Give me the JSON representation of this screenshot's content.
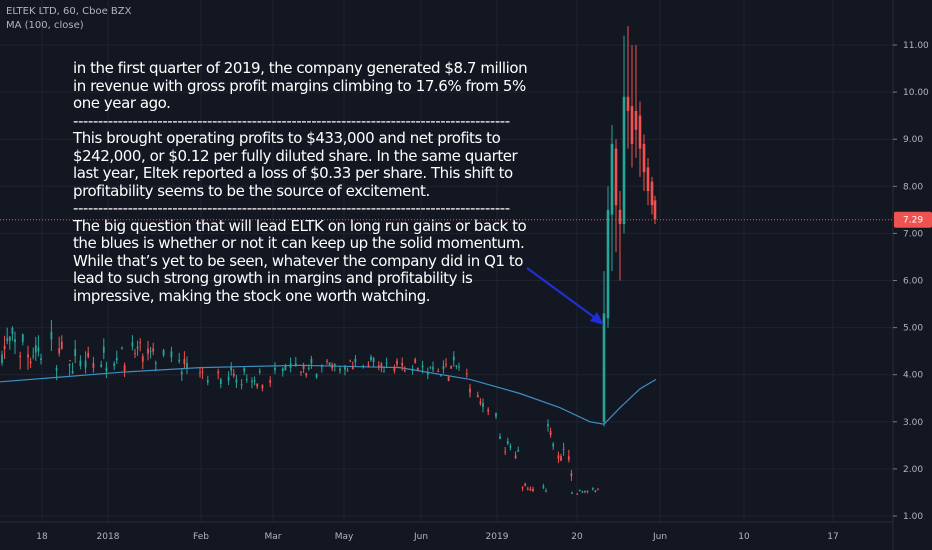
{
  "header": {
    "symbol_line": "ELTEK LTD, 60, Cboe BZX",
    "indicator_line": "MA (100, close)"
  },
  "note": {
    "paragraphs": [
      "in the first quarter of 2019, the company generated $8.7 million in revenue with gross profit margins climbing to 17.6% from 5% one year ago.",
      "This brought operating profits to $433,000 and net profits to $242,000, or $0.12 per fully diluted share. In the same quarter last year, Eltek reported a loss of $0.33 per share. This shift to profitability seems to be the source of excitement.",
      "The big question that will lead ELTK on long run gains or back to the blues is whether or not it can keep up the solid momentum. While that’s yet to be seen, whatever the company did in Q1 to lead to such strong growth in margins and profitability is impressive, making the stock one worth watching."
    ],
    "separator": "----------------------------------------------------------------------------------------"
  },
  "colors": {
    "background": "#131722",
    "grid": "#1f2330",
    "up": "#26a69a",
    "down": "#ef5350",
    "ma": "#3b8fc4",
    "arrow": "#1f2fd6",
    "price_tag": "#ef5350"
  },
  "chart_data": {
    "type": "candlestick",
    "title": "ELTEK LTD, 60, Cboe BZX",
    "indicator": "MA (100, close)",
    "y_axis": {
      "ticks": [
        "1.00",
        "2.00",
        "3.00",
        "4.00",
        "5.00",
        "6.00",
        "7.00",
        "8.00",
        "9.00",
        "10.00",
        "11.00"
      ],
      "ylim": [
        0.7,
        11.4
      ]
    },
    "x_axis": {
      "ticks": [
        "18",
        "2018",
        "Feb",
        "Mar",
        "May",
        "Jun",
        "2019",
        "20",
        "Jun",
        "10",
        "17"
      ]
    },
    "last_price": "7.29",
    "clusters": [
      {
        "x0": 2,
        "x1": 70,
        "center": 4.5,
        "spread": 0.7,
        "trend": -0.2
      },
      {
        "x0": 70,
        "x1": 135,
        "center": 4.3,
        "spread": 0.5,
        "trend": 0.2
      },
      {
        "x0": 135,
        "x1": 200,
        "center": 4.3,
        "spread": 0.45,
        "trend": -0.4
      },
      {
        "x0": 200,
        "x1": 275,
        "center": 3.95,
        "spread": 0.35,
        "trend": -0.1
      },
      {
        "x0": 275,
        "x1": 345,
        "center": 4.1,
        "spread": 0.35,
        "trend": 0.1
      },
      {
        "x0": 345,
        "x1": 420,
        "center": 4.2,
        "spread": 0.3,
        "trend": 0.0
      },
      {
        "x0": 420,
        "x1": 468,
        "center": 4.1,
        "spread": 0.35,
        "trend": 0.2
      },
      {
        "x0": 470,
        "x1": 500,
        "center": 3.3,
        "spread": 0.3,
        "trend": -0.6
      },
      {
        "x0": 500,
        "x1": 520,
        "center": 2.4,
        "spread": 0.25,
        "trend": -0.3
      },
      {
        "x0": 520,
        "x1": 548,
        "center": 1.6,
        "spread": 0.15,
        "trend": -0.2
      },
      {
        "x0": 548,
        "x1": 572,
        "center": 2.4,
        "spread": 0.35,
        "trend": -0.7
      },
      {
        "x0": 572,
        "x1": 600,
        "center": 1.55,
        "spread": 0.1,
        "trend": 0.1
      }
    ],
    "rally": [
      {
        "x": 604,
        "o": 3.0,
        "c": 5.3,
        "h": 6.2,
        "l": 2.9
      },
      {
        "x": 608,
        "o": 5.2,
        "c": 7.5,
        "h": 8.0,
        "l": 5.0
      },
      {
        "x": 612,
        "o": 7.4,
        "c": 8.9,
        "h": 9.3,
        "l": 6.2
      },
      {
        "x": 616,
        "o": 8.8,
        "c": 7.6,
        "h": 9.0,
        "l": 6.6
      },
      {
        "x": 620,
        "o": 7.5,
        "c": 7.2,
        "h": 7.9,
        "l": 6.0
      },
      {
        "x": 624,
        "o": 7.2,
        "c": 9.9,
        "h": 11.2,
        "l": 7.0
      },
      {
        "x": 628,
        "o": 9.9,
        "c": 9.6,
        "h": 11.4,
        "l": 8.8
      },
      {
        "x": 632,
        "o": 9.7,
        "c": 8.9,
        "h": 11.0,
        "l": 8.4
      },
      {
        "x": 636,
        "o": 9.6,
        "c": 9.2,
        "h": 11.0,
        "l": 8.6
      },
      {
        "x": 640,
        "o": 9.5,
        "c": 8.8,
        "h": 9.8,
        "l": 8.2
      },
      {
        "x": 644,
        "o": 8.9,
        "c": 8.3,
        "h": 9.1,
        "l": 7.9
      },
      {
        "x": 648,
        "o": 8.4,
        "c": 7.9,
        "h": 8.6,
        "l": 7.6
      },
      {
        "x": 652,
        "o": 8.1,
        "c": 7.6,
        "h": 8.2,
        "l": 7.4
      },
      {
        "x": 655,
        "o": 7.7,
        "c": 7.3,
        "h": 7.8,
        "l": 7.2
      }
    ],
    "ma_series": [
      {
        "x": 0,
        "y": 3.85
      },
      {
        "x": 60,
        "y": 3.95
      },
      {
        "x": 120,
        "y": 4.05
      },
      {
        "x": 200,
        "y": 4.15
      },
      {
        "x": 300,
        "y": 4.2
      },
      {
        "x": 400,
        "y": 4.15
      },
      {
        "x": 470,
        "y": 3.9
      },
      {
        "x": 520,
        "y": 3.6
      },
      {
        "x": 560,
        "y": 3.3
      },
      {
        "x": 590,
        "y": 3.0
      },
      {
        "x": 604,
        "y": 2.95
      },
      {
        "x": 620,
        "y": 3.3
      },
      {
        "x": 640,
        "y": 3.7
      },
      {
        "x": 656,
        "y": 3.9
      }
    ]
  }
}
